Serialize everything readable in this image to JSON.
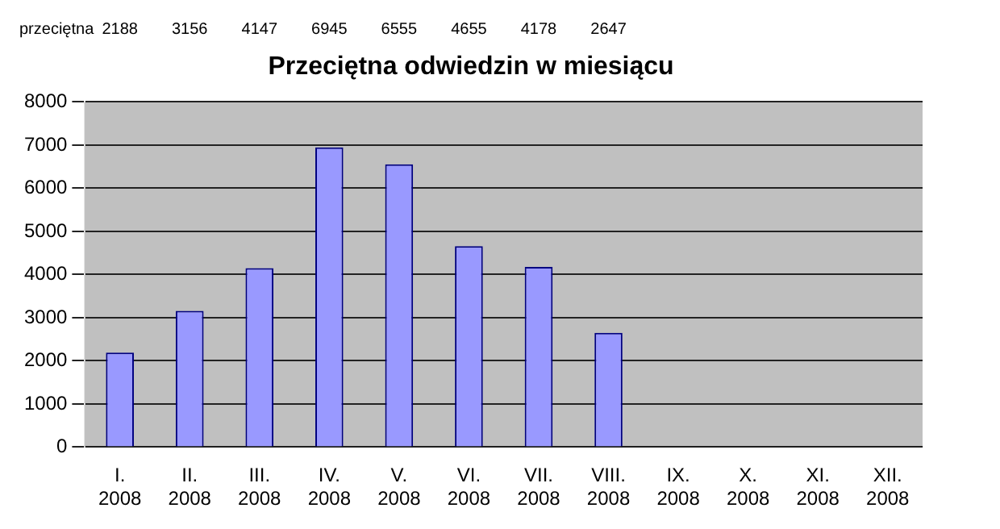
{
  "chart_data": {
    "type": "bar",
    "title": "Przeciętna odwiedzin w miesiącu",
    "categories": [
      "I. 2008",
      "II. 2008",
      "III. 2008",
      "IV. 2008",
      "V. 2008",
      "VI. 2008",
      "VII. 2008",
      "VIII. 2008",
      "IX. 2008",
      "X. 2008",
      "XI. 2008",
      "XII. 2008"
    ],
    "values": [
      2188,
      3156,
      4147,
      6945,
      6555,
      4655,
      4178,
      2647,
      null,
      null,
      null,
      null
    ],
    "color": "#9999ff",
    "ylim": [
      0,
      8000
    ],
    "yticks": [
      0,
      1000,
      2000,
      3000,
      4000,
      5000,
      6000,
      7000,
      8000
    ],
    "grid": "y",
    "legend": false,
    "data_labels": true,
    "annotations": [
      "przeciętna"
    ]
  }
}
